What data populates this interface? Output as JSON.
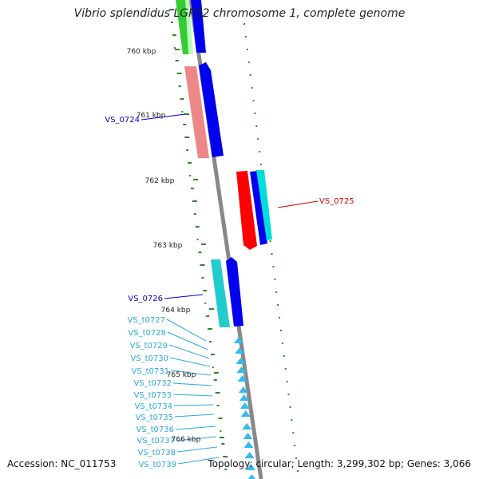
{
  "title": "Vibrio splendidus LGP32 chromosome 1, complete genome",
  "accession": "Accession: NC_011753",
  "topology": "Topology: circular; Length: 3,299,302 bp; Genes: 3,066",
  "ruler_labels": [
    "760 kbp",
    "761 kbp",
    "762 kbp",
    "763 kbp",
    "764 kbp",
    "765 kbp",
    "766 kbp"
  ],
  "gene_labels": [
    {
      "text": "VS_0724",
      "color": "#0000cc"
    },
    {
      "text": "VS_0725",
      "color": "#dd0000"
    },
    {
      "text": "VS_0726",
      "color": "#0000cc"
    },
    {
      "text": "VS_t0727",
      "color": "#2aa8e0"
    },
    {
      "text": "VS_t0728",
      "color": "#2aa8e0"
    },
    {
      "text": "VS_t0729",
      "color": "#2aa8e0"
    },
    {
      "text": "VS_t0730",
      "color": "#2aa8e0"
    },
    {
      "text": "VS_t0731",
      "color": "#2aa8e0"
    },
    {
      "text": "VS_t0732",
      "color": "#2aa8e0"
    },
    {
      "text": "VS_t0733",
      "color": "#2aa8e0"
    },
    {
      "text": "VS_t0734",
      "color": "#2aa8e0"
    },
    {
      "text": "VS_t0735",
      "color": "#2aa8e0"
    },
    {
      "text": "VS_t0736",
      "color": "#2aa8e0"
    },
    {
      "text": "VS_t0737",
      "color": "#2aa8e0"
    },
    {
      "text": "VS_t0738",
      "color": "#2aa8e0"
    },
    {
      "text": "VS_t0739",
      "color": "#2aa8e0"
    }
  ],
  "colors": {
    "backbone": "#888888",
    "ruler_ticks": "#2a8a2a",
    "green_block": "#33cc33",
    "pink_block": "#ee8888",
    "blue_cds": "#0000ee",
    "red_cds": "#ff0000",
    "cyan_block": "#22cccc",
    "cyan_cds": "#00dddd",
    "trna": "#33bbee"
  }
}
